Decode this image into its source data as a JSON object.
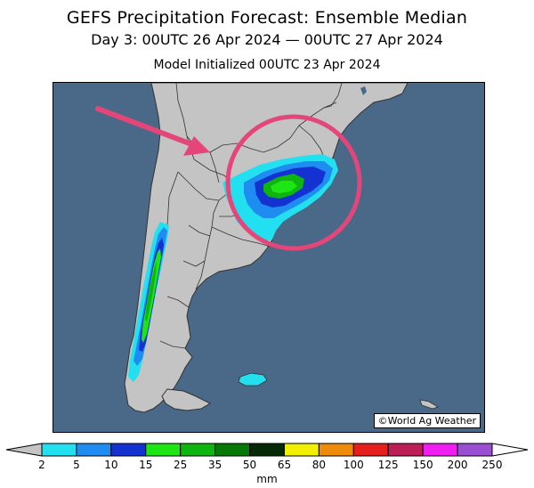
{
  "header": {
    "title": "GEFS Precipitation Forecast: Ensemble Median",
    "subtitle": "Day 3: 00UTC 26 Apr 2024 — 00UTC 27 Apr 2024",
    "initialized": "Model Initialized 00UTC 23 Apr 2024"
  },
  "map": {
    "credit": "©World Ag Weather",
    "colors": {
      "ocean": "#4a6887",
      "land": "#c4c4c4",
      "border": "#333333",
      "annotation": "#e44679"
    }
  },
  "legend": {
    "unit": "mm",
    "ticks": [
      "2",
      "5",
      "10",
      "15",
      "25",
      "35",
      "50",
      "65",
      "80",
      "100",
      "125",
      "150",
      "200",
      "250"
    ],
    "colors": [
      "#22e0f0",
      "#1e8cf0",
      "#1432d2",
      "#1ee614",
      "#0fb40f",
      "#067806",
      "#052805",
      "#f0f000",
      "#ee8c0a",
      "#e61e1e",
      "#bc1e56",
      "#f01ef0",
      "#9a4ed2"
    ]
  }
}
